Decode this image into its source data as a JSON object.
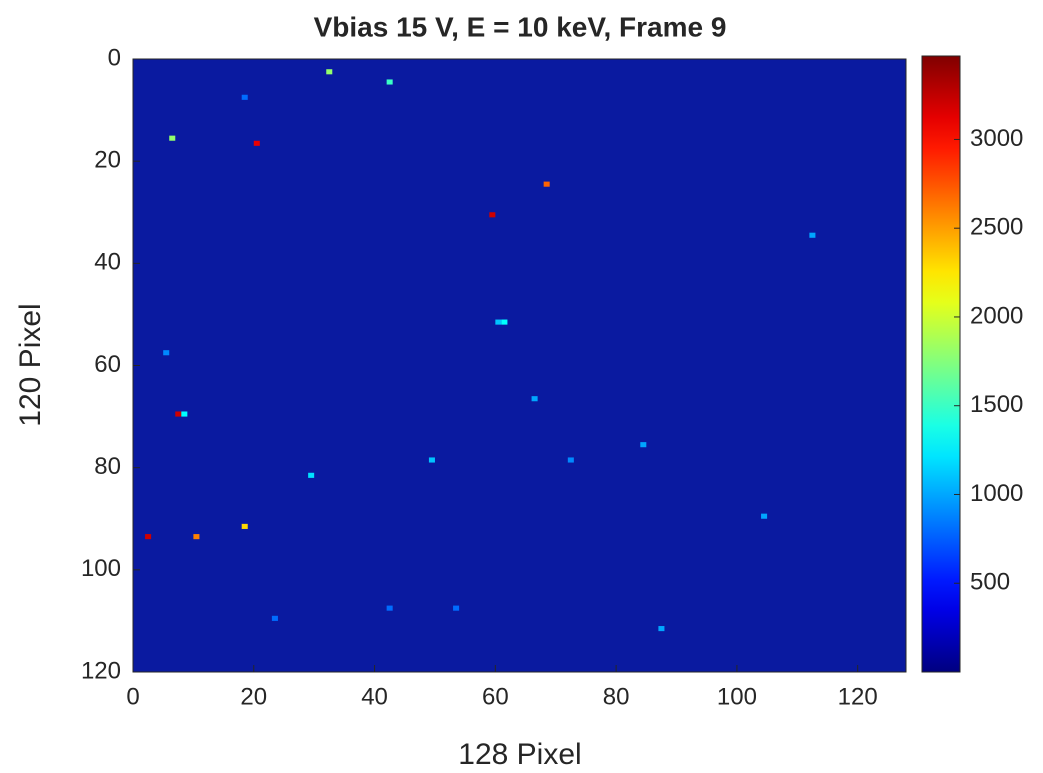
{
  "chart_data": {
    "type": "heatmap",
    "title": "Vbias 15 V, E = 10 keV, Frame 9",
    "xlabel": "128 Pixel",
    "ylabel": "120 Pixel",
    "xlim": [
      0,
      128
    ],
    "ylim": [
      0,
      120
    ],
    "y_reversed": true,
    "xticks": [
      0,
      20,
      40,
      60,
      80,
      100,
      120
    ],
    "yticks": [
      0,
      20,
      40,
      60,
      80,
      100,
      120
    ],
    "colormap": "jet",
    "clim": [
      0,
      3470
    ],
    "cticks": [
      500,
      1000,
      1500,
      2000,
      2500,
      3000
    ],
    "x": [
      32,
      42,
      6,
      20,
      68,
      59,
      112,
      61,
      60,
      5,
      66,
      7,
      8,
      49,
      84,
      72,
      29,
      2,
      10,
      18,
      104,
      87,
      23,
      42,
      53,
      18
    ],
    "y": [
      2,
      4,
      15,
      16,
      24,
      30,
      34,
      51,
      51,
      57,
      66,
      69,
      69,
      78,
      75,
      78,
      81,
      93,
      93,
      91,
      89,
      111,
      109,
      107,
      107,
      7
    ],
    "values": [
      1800,
      1500,
      1800,
      3100,
      2700,
      3200,
      1000,
      1300,
      1100,
      900,
      1000,
      3200,
      1300,
      1100,
      1000,
      900,
      1200,
      3200,
      2600,
      2300,
      1000,
      1000,
      800,
      800,
      800,
      800
    ]
  }
}
